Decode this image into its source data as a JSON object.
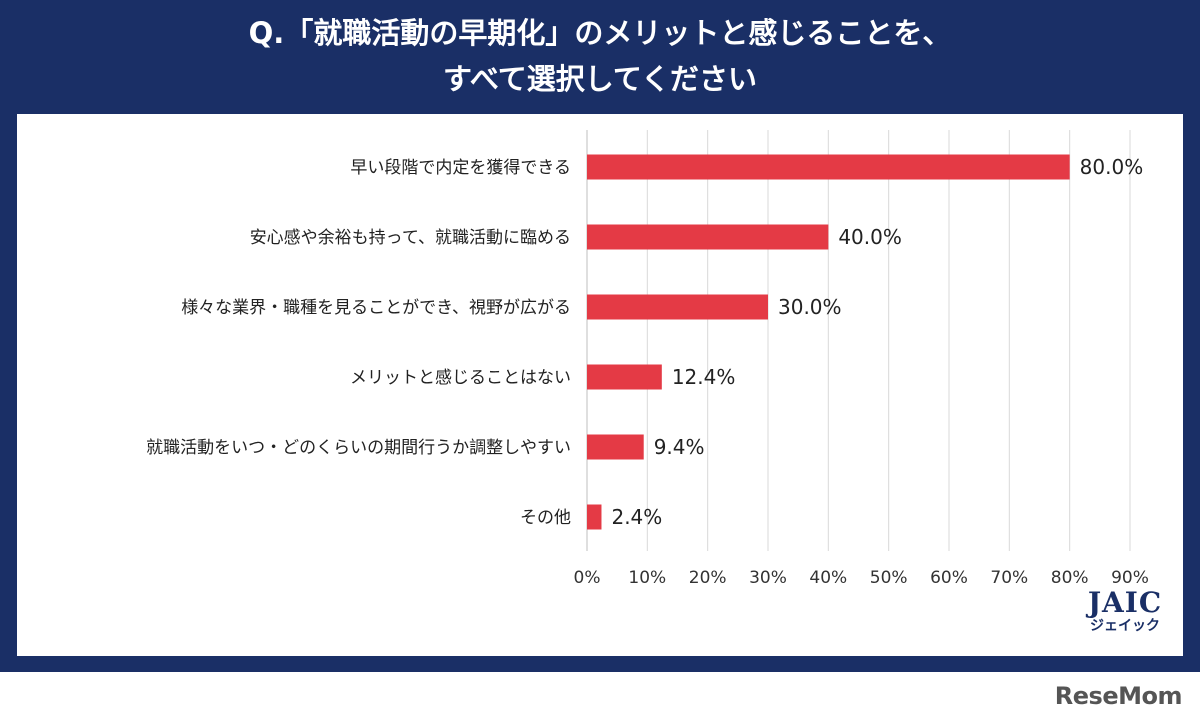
{
  "title": {
    "line1": "Q.「就職活動の早期化」のメリットと感じることを、",
    "line2": "すべて選択してください"
  },
  "chart_data": {
    "type": "bar",
    "orientation": "horizontal",
    "categories": [
      "早い段階で内定を獲得できる",
      "安心感や余裕も持って、就職活動に臨める",
      "様々な業界・職種を見ることができ、視野が広がる",
      "メリットと感じることはない",
      "就職活動をいつ・どのくらいの期間行うか調整しやすい",
      "その他"
    ],
    "values": [
      80.0,
      40.0,
      30.0,
      12.4,
      9.4,
      2.4
    ],
    "value_labels": [
      "80.0%",
      "40.0%",
      "30.0%",
      "12.4%",
      "9.4%",
      "2.4%"
    ],
    "x_ticks": [
      "0%",
      "10%",
      "20%",
      "30%",
      "40%",
      "50%",
      "60%",
      "70%",
      "80%",
      "90%"
    ],
    "xlim": [
      0,
      90
    ],
    "grid": true,
    "bar_color": "#e43a45"
  },
  "colors": {
    "frame": "#1a2f66",
    "bar": "#e43a45",
    "grid": "#d9d9d9"
  },
  "logo": {
    "main": "JAIC",
    "sub": "ジェイック"
  },
  "watermark": "ReseMom"
}
